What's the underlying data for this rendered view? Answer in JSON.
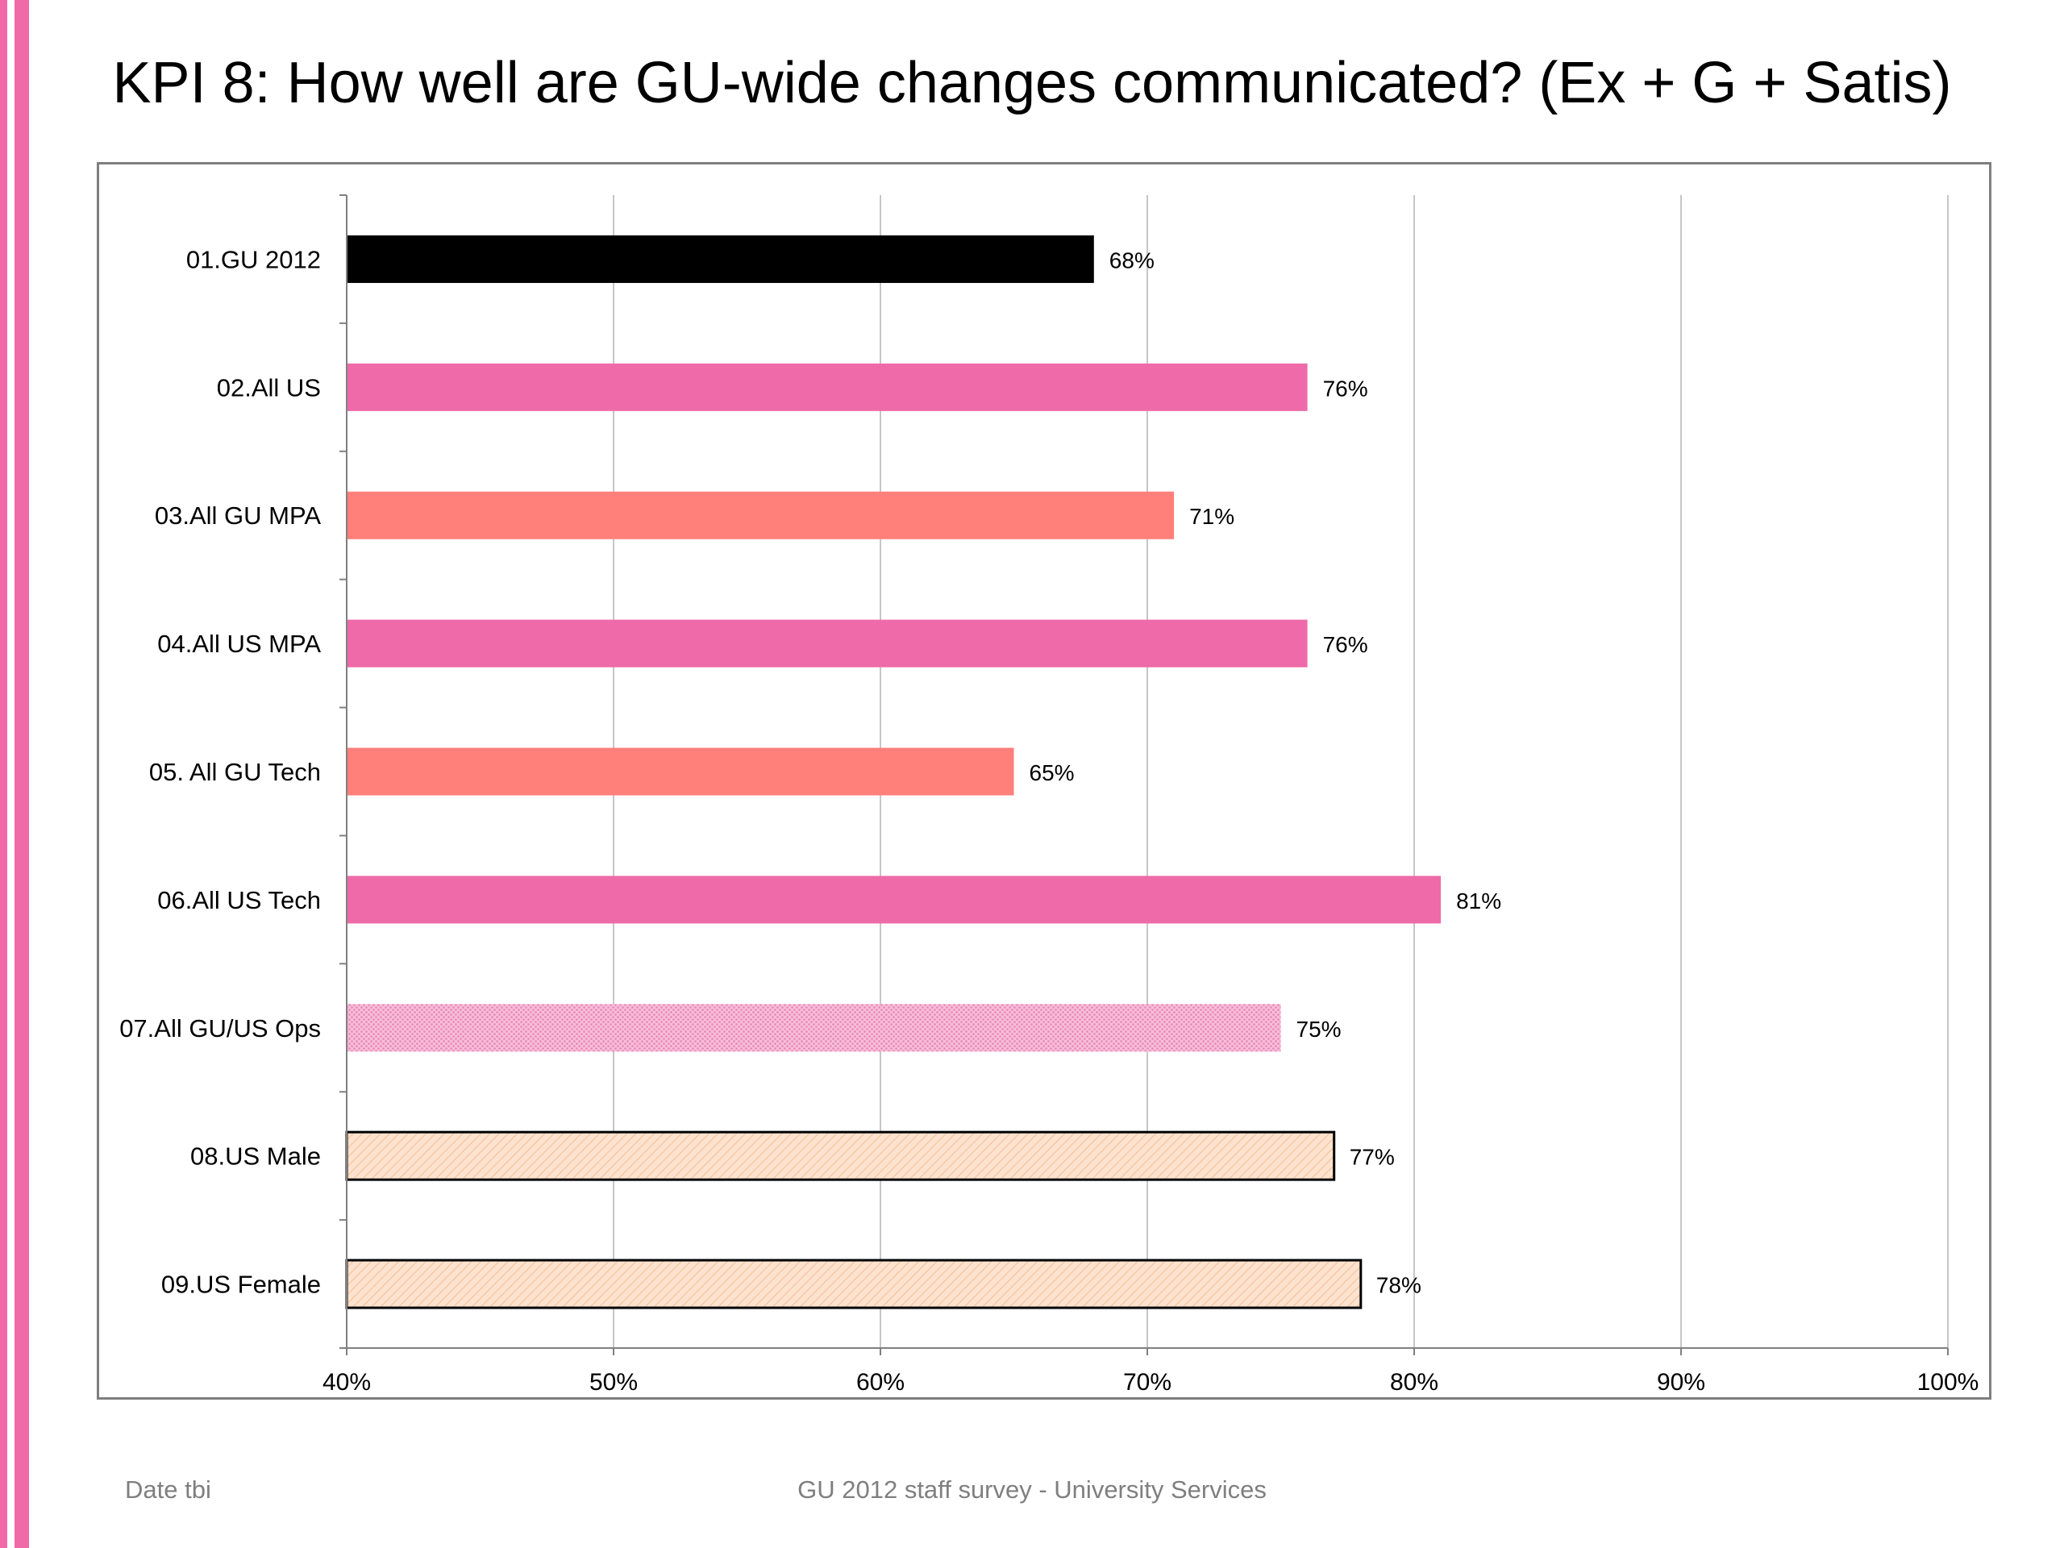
{
  "slide": {
    "title": "KPI 8: How well are GU-wide changes communicated? (Ex + G + Satis)",
    "footer_left": "Date tbi",
    "footer_center": "GU 2012 staff survey -  University Services"
  },
  "colors": {
    "accent_stripe": "#f06aa8",
    "black_bar": "#000000",
    "pink_bar": "#ee6aa8",
    "salmon_bar": "#ff7f7a",
    "light_pink_pattern": "#f5a8cc",
    "peach_pattern": "#fde0c8"
  },
  "chart_data": {
    "type": "bar",
    "orientation": "horizontal",
    "title": "",
    "xlabel": "",
    "ylabel": "",
    "xlim": [
      40,
      100
    ],
    "x_ticks": [
      "40%",
      "50%",
      "60%",
      "70%",
      "80%",
      "90%",
      "100%"
    ],
    "x_tick_values": [
      40,
      50,
      60,
      70,
      80,
      90,
      100
    ],
    "grid": "vertical",
    "legend": "none",
    "categories": [
      "01.GU 2012",
      "02.All US",
      "03.All GU MPA",
      "04.All US MPA",
      "05. All GU Tech",
      "06.All US Tech",
      "07.All GU/US Ops",
      "08.US Male",
      "09.US Female"
    ],
    "values": [
      68,
      76,
      71,
      76,
      65,
      81,
      75,
      77,
      78
    ],
    "data_labels": [
      "68%",
      "76%",
      "71%",
      "76%",
      "65%",
      "81%",
      "75%",
      "77%",
      "78%"
    ],
    "bar_styles": [
      "black",
      "pink",
      "salmon",
      "pink",
      "salmon",
      "pink",
      "light-pink-dotted",
      "peach-hatched-outlined",
      "peach-hatched-outlined"
    ]
  }
}
